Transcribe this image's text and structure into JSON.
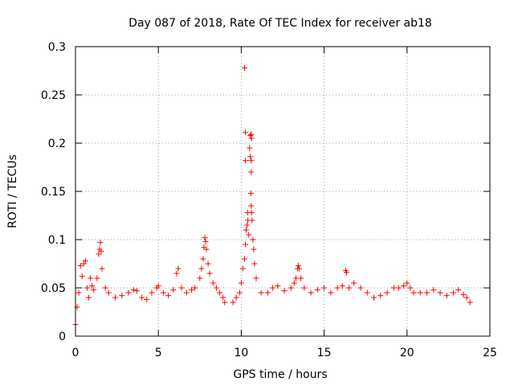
{
  "chart_data": {
    "type": "scatter",
    "title": "Day 087 of 2018, Rate Of TEC Index for receiver ab18",
    "xlabel": "GPS time / hours",
    "ylabel": "ROTI / TECUs",
    "xlim": [
      0,
      25
    ],
    "ylim": [
      0,
      0.3
    ],
    "xticks": [
      0,
      5,
      10,
      15,
      20,
      25
    ],
    "xtick_labels": [
      "0",
      "5",
      "10",
      "15",
      "20",
      "25"
    ],
    "yticks": [
      0,
      0.05,
      0.1,
      0.15,
      0.2,
      0.25,
      0.3
    ],
    "ytick_labels": [
      "0",
      "0.05",
      "0.1",
      "0.15",
      "0.2",
      "0.25",
      "0.3"
    ],
    "grid": true,
    "marker": "+",
    "color": "#ff0000",
    "series": [
      {
        "name": "ROTI",
        "points": [
          [
            0.0,
            0.012
          ],
          [
            0.1,
            0.03
          ],
          [
            0.2,
            0.045
          ],
          [
            0.3,
            0.073
          ],
          [
            0.4,
            0.062
          ],
          [
            0.5,
            0.075
          ],
          [
            0.6,
            0.078
          ],
          [
            0.7,
            0.05
          ],
          [
            0.8,
            0.04
          ],
          [
            0.9,
            0.06
          ],
          [
            1.0,
            0.052
          ],
          [
            1.1,
            0.048
          ],
          [
            1.3,
            0.06
          ],
          [
            1.4,
            0.085
          ],
          [
            1.45,
            0.09
          ],
          [
            1.5,
            0.097
          ],
          [
            1.55,
            0.088
          ],
          [
            1.6,
            0.07
          ],
          [
            1.8,
            0.05
          ],
          [
            2.0,
            0.045
          ],
          [
            2.4,
            0.04
          ],
          [
            2.8,
            0.042
          ],
          [
            3.2,
            0.045
          ],
          [
            3.5,
            0.048
          ],
          [
            3.7,
            0.047
          ],
          [
            4.0,
            0.04
          ],
          [
            4.3,
            0.038
          ],
          [
            4.6,
            0.045
          ],
          [
            4.9,
            0.05
          ],
          [
            5.0,
            0.052
          ],
          [
            5.3,
            0.045
          ],
          [
            5.6,
            0.042
          ],
          [
            5.9,
            0.048
          ],
          [
            6.1,
            0.065
          ],
          [
            6.2,
            0.07
          ],
          [
            6.4,
            0.05
          ],
          [
            6.7,
            0.045
          ],
          [
            7.0,
            0.048
          ],
          [
            7.2,
            0.05
          ],
          [
            7.5,
            0.06
          ],
          [
            7.6,
            0.07
          ],
          [
            7.7,
            0.08
          ],
          [
            7.75,
            0.092
          ],
          [
            7.8,
            0.102
          ],
          [
            7.85,
            0.098
          ],
          [
            7.9,
            0.09
          ],
          [
            8.0,
            0.075
          ],
          [
            8.1,
            0.065
          ],
          [
            8.3,
            0.055
          ],
          [
            8.5,
            0.05
          ],
          [
            8.7,
            0.045
          ],
          [
            8.9,
            0.04
          ],
          [
            9.0,
            0.035
          ],
          [
            9.5,
            0.035
          ],
          [
            9.7,
            0.04
          ],
          [
            9.9,
            0.045
          ],
          [
            10.0,
            0.055
          ],
          [
            10.1,
            0.07
          ],
          [
            10.2,
            0.08
          ],
          [
            10.25,
            0.095
          ],
          [
            10.3,
            0.11
          ],
          [
            10.35,
            0.115
          ],
          [
            10.38,
            0.128
          ],
          [
            10.4,
            0.12
          ],
          [
            10.45,
            0.105
          ],
          [
            10.2,
            0.278
          ],
          [
            10.25,
            0.211
          ],
          [
            10.25,
            0.182
          ],
          [
            10.55,
            0.208
          ],
          [
            10.6,
            0.209
          ],
          [
            10.62,
            0.205
          ],
          [
            10.5,
            0.195
          ],
          [
            10.55,
            0.186
          ],
          [
            10.6,
            0.182
          ],
          [
            10.6,
            0.17
          ],
          [
            10.58,
            0.148
          ],
          [
            10.6,
            0.135
          ],
          [
            10.62,
            0.128
          ],
          [
            10.65,
            0.12
          ],
          [
            10.7,
            0.1
          ],
          [
            10.75,
            0.09
          ],
          [
            10.8,
            0.075
          ],
          [
            10.9,
            0.06
          ],
          [
            11.2,
            0.045
          ],
          [
            11.6,
            0.045
          ],
          [
            11.9,
            0.05
          ],
          [
            12.2,
            0.052
          ],
          [
            12.6,
            0.047
          ],
          [
            13.0,
            0.05
          ],
          [
            13.2,
            0.055
          ],
          [
            13.3,
            0.06
          ],
          [
            13.4,
            0.07
          ],
          [
            13.45,
            0.073
          ],
          [
            13.5,
            0.07
          ],
          [
            13.6,
            0.06
          ],
          [
            13.8,
            0.05
          ],
          [
            14.2,
            0.045
          ],
          [
            14.6,
            0.048
          ],
          [
            15.0,
            0.05
          ],
          [
            15.4,
            0.045
          ],
          [
            15.8,
            0.05
          ],
          [
            16.1,
            0.052
          ],
          [
            16.3,
            0.068
          ],
          [
            16.35,
            0.066
          ],
          [
            16.5,
            0.05
          ],
          [
            16.8,
            0.055
          ],
          [
            17.2,
            0.05
          ],
          [
            17.6,
            0.045
          ],
          [
            18.0,
            0.04
          ],
          [
            18.4,
            0.042
          ],
          [
            18.8,
            0.045
          ],
          [
            19.2,
            0.05
          ],
          [
            19.5,
            0.05
          ],
          [
            19.8,
            0.052
          ],
          [
            20.0,
            0.055
          ],
          [
            20.2,
            0.05
          ],
          [
            20.4,
            0.045
          ],
          [
            20.8,
            0.045
          ],
          [
            21.2,
            0.045
          ],
          [
            21.6,
            0.048
          ],
          [
            22.0,
            0.045
          ],
          [
            22.4,
            0.042
          ],
          [
            22.8,
            0.045
          ],
          [
            23.1,
            0.048
          ],
          [
            23.4,
            0.043
          ],
          [
            23.6,
            0.04
          ],
          [
            23.8,
            0.035
          ]
        ]
      }
    ]
  }
}
